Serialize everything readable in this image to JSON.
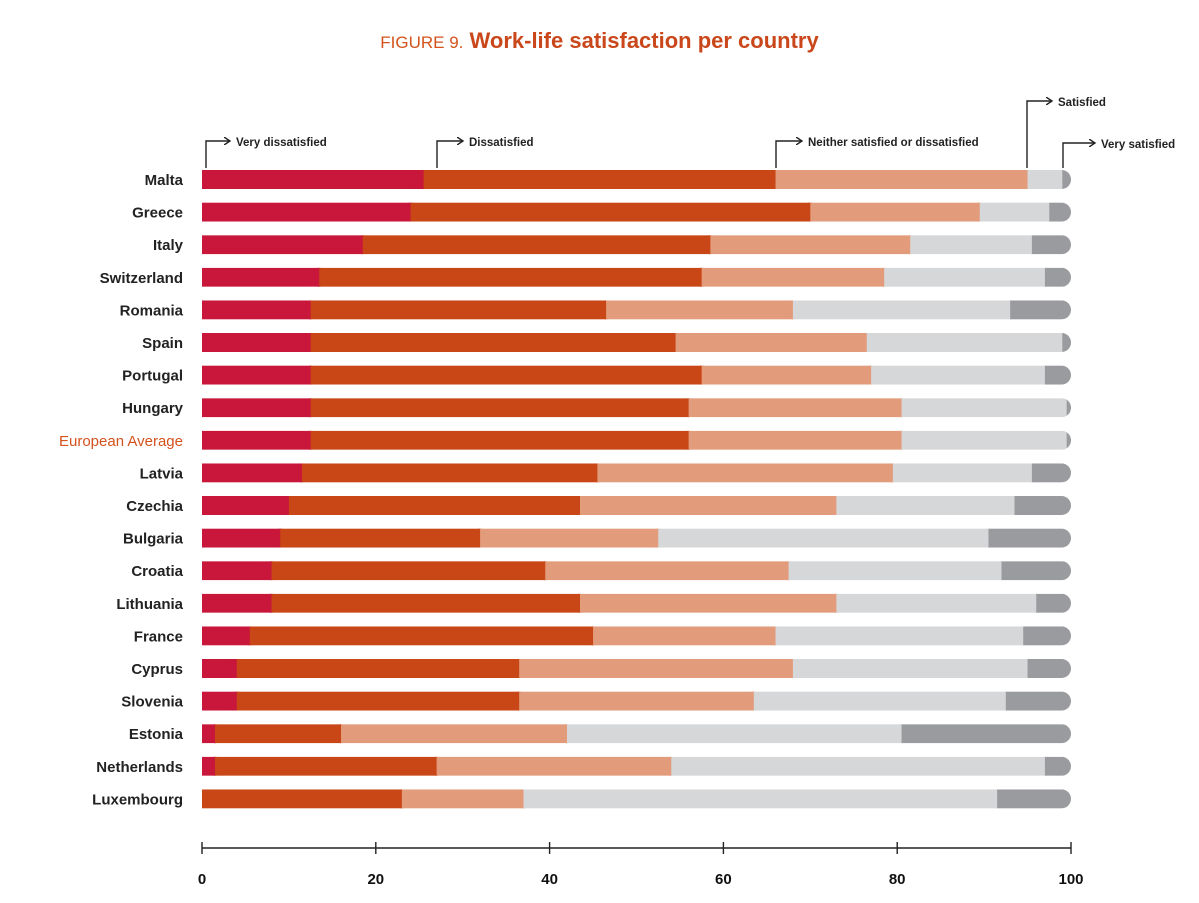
{
  "title": {
    "prefix": "FIGURE 9.",
    "main": "Work-life satisfaction per country"
  },
  "colors": {
    "very_dissatisfied": "#c8173a",
    "dissatisfied": "#c94717",
    "neither": "#e39c7b",
    "satisfied": "#d6d7d8",
    "very_satisfied": "#9a9b9e",
    "highlight_label": "#d4521c",
    "title": "#c9471a"
  },
  "chart_data": {
    "type": "bar",
    "orientation": "horizontal",
    "stacked": true,
    "categories": [
      "Malta",
      "Greece",
      "Italy",
      "Switzerland",
      "Romania",
      "Spain",
      "Portugal",
      "Hungary",
      "European Average",
      "Latvia",
      "Czechia",
      "Bulgaria",
      "Croatia",
      "Lithuania",
      "France",
      "Cyprus",
      "Slovenia",
      "Estonia",
      "Netherlands",
      "Luxembourg"
    ],
    "highlight_category": "European Average",
    "series": [
      {
        "name": "Very dissatisfied",
        "color_key": "very_dissatisfied",
        "values": [
          25.5,
          24,
          18.5,
          13.5,
          12.5,
          12.5,
          12.5,
          12.5,
          12.5,
          11.5,
          10,
          9,
          8,
          8,
          5.5,
          4,
          4,
          1.5,
          1.5,
          0
        ]
      },
      {
        "name": "Dissatisfied",
        "color_key": "dissatisfied",
        "values": [
          40.5,
          46,
          40,
          44,
          34,
          42,
          45,
          43.5,
          43.5,
          34,
          33.5,
          23,
          31.5,
          35.5,
          39.5,
          32.5,
          32.5,
          14.5,
          25.5,
          23
        ]
      },
      {
        "name": "Neither satisfied or dissatisfied",
        "color_key": "neither",
        "values": [
          29,
          19.5,
          23,
          21,
          21.5,
          22,
          19.5,
          24.5,
          24.5,
          34,
          29.5,
          20.5,
          28,
          29.5,
          21,
          31.5,
          27,
          26,
          27,
          14
        ]
      },
      {
        "name": "Satisfied",
        "color_key": "satisfied",
        "values": [
          4,
          8,
          14,
          18.5,
          25,
          22.5,
          20,
          19,
          19,
          16,
          20.5,
          38,
          24.5,
          23,
          28.5,
          27,
          29,
          38.5,
          43,
          54.5
        ]
      },
      {
        "name": "Very satisfied",
        "color_key": "very_satisfied",
        "values": [
          1,
          2.5,
          4.5,
          3,
          7,
          1,
          3,
          0.5,
          0.5,
          4.5,
          6.5,
          9.5,
          8,
          4,
          5.5,
          5,
          7.5,
          19.5,
          3,
          8.5
        ]
      }
    ],
    "xlim": [
      0,
      100
    ],
    "xticks": [
      0,
      20,
      40,
      60,
      80,
      100
    ],
    "xlabel": "",
    "ylabel": "",
    "grid": false,
    "legend": "top"
  }
}
